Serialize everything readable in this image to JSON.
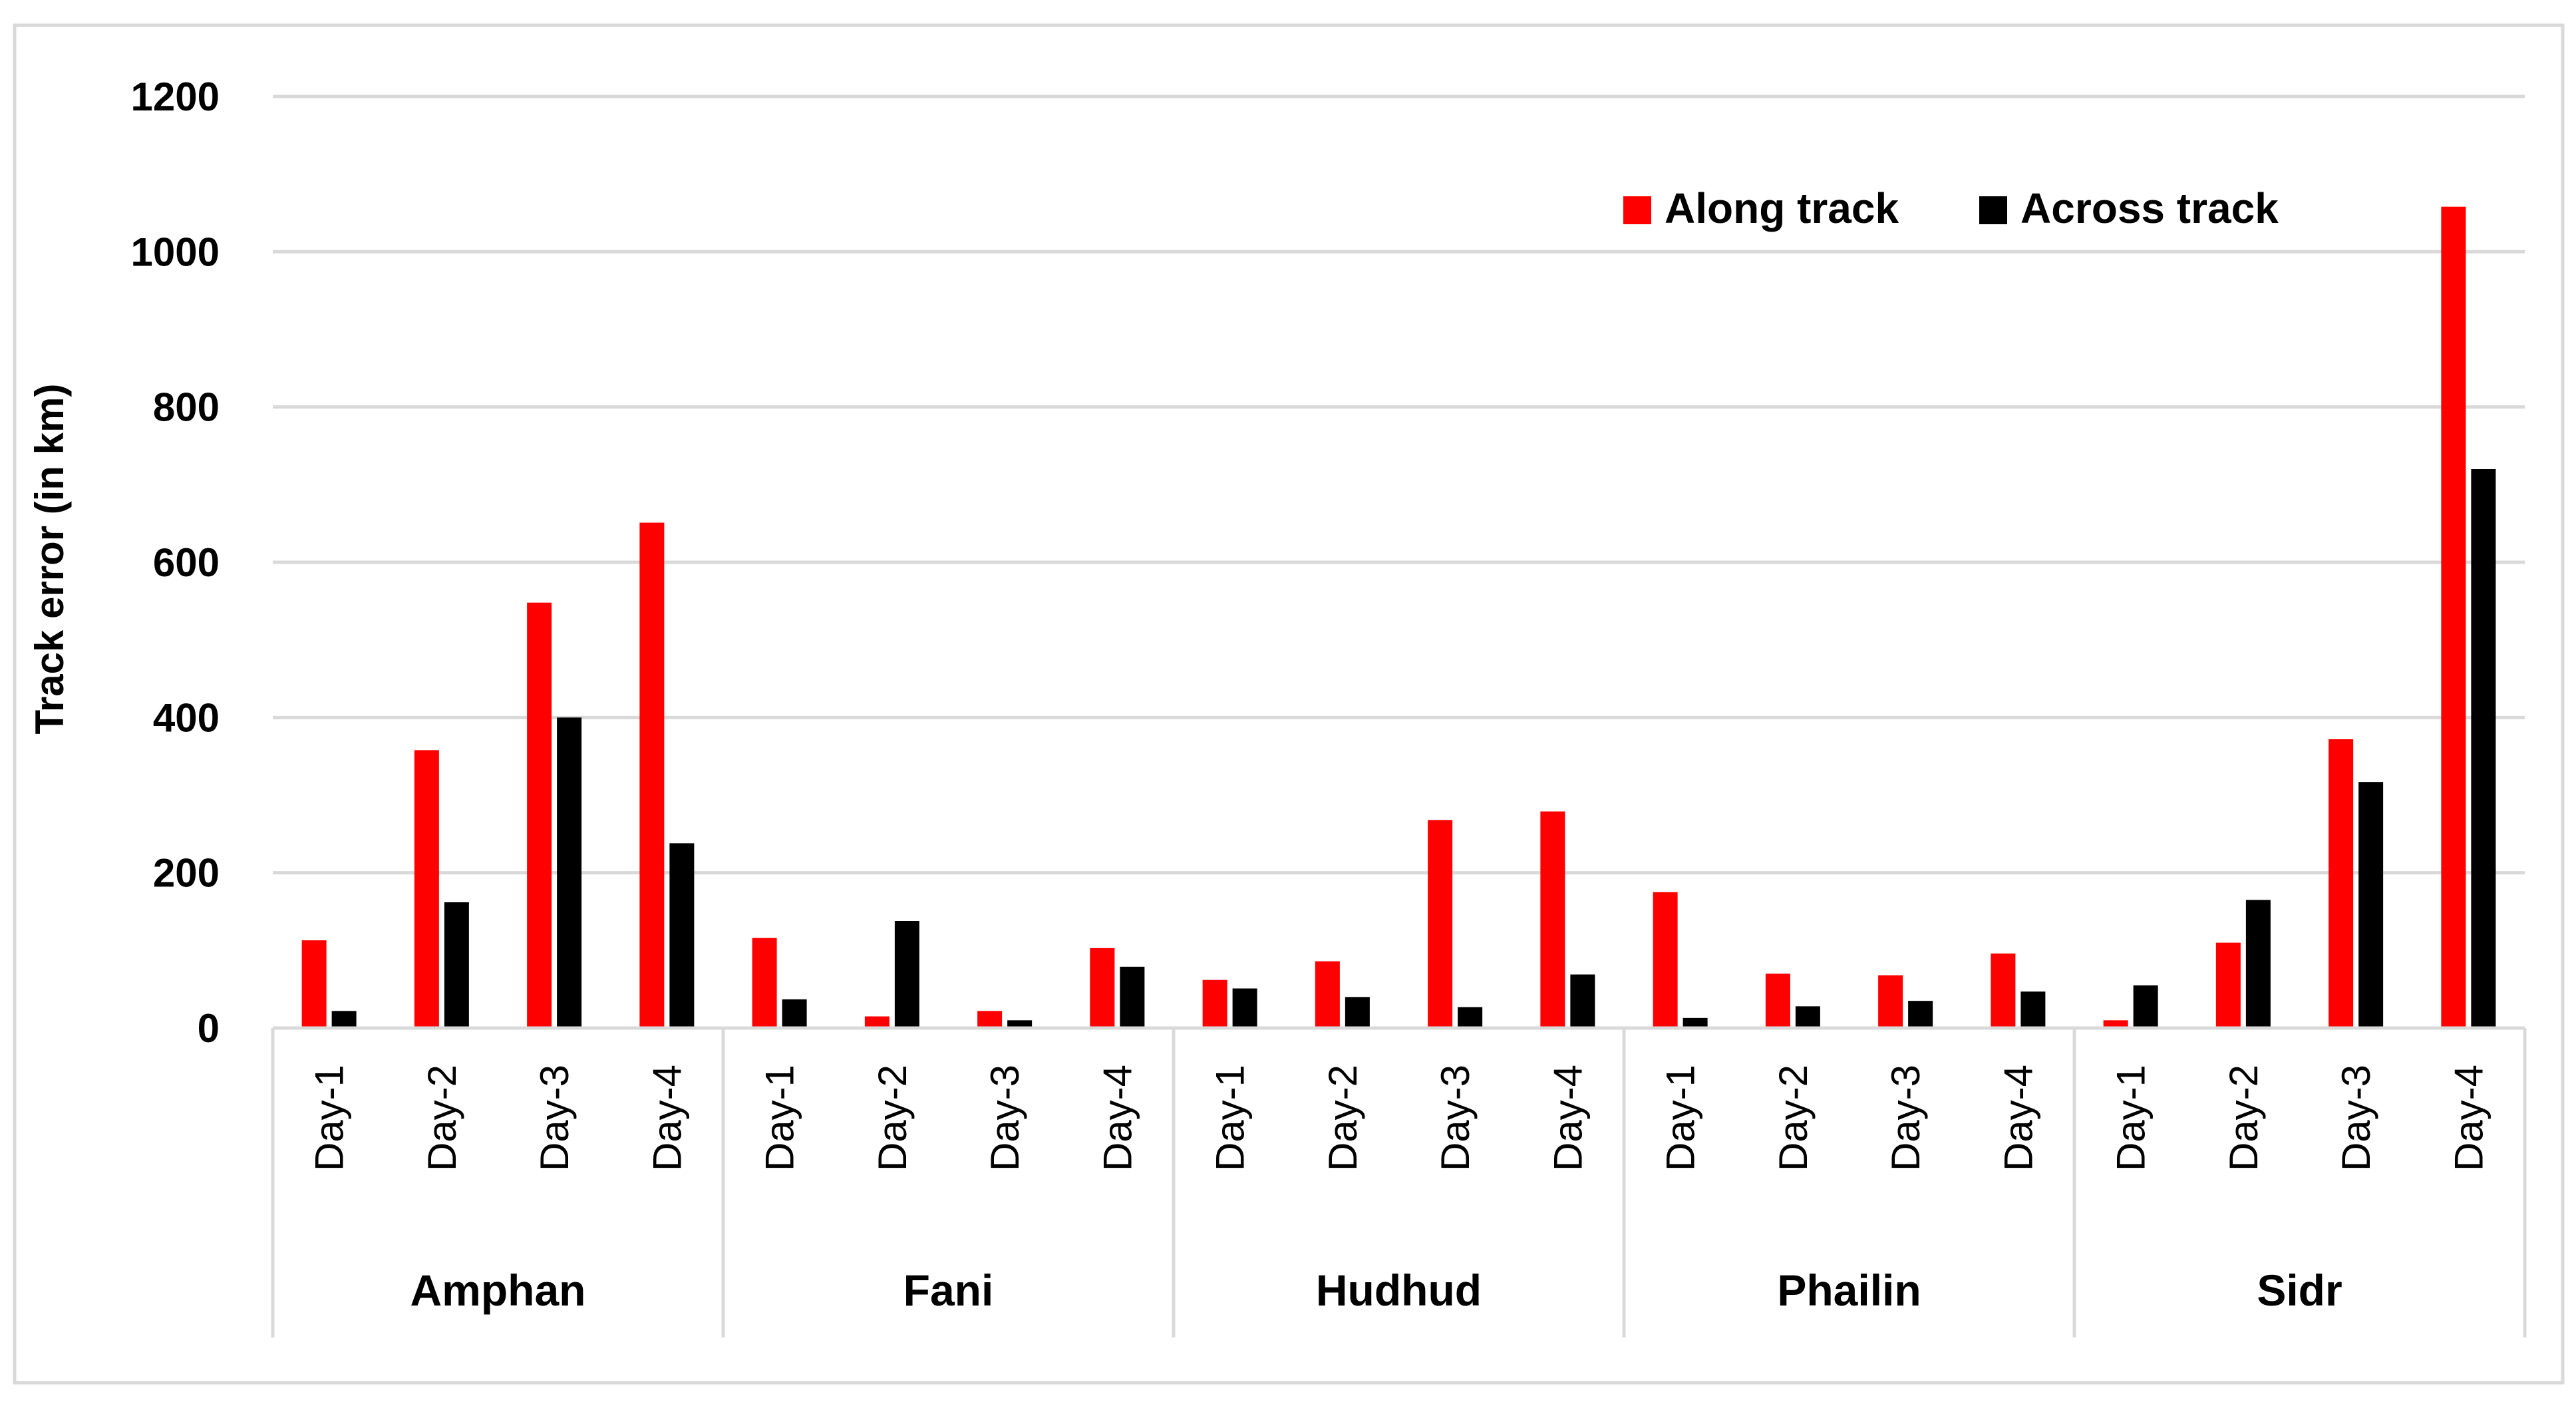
{
  "colors": {
    "along": "#ff0000",
    "across": "#000000",
    "grid": "#d9d9d9",
    "axis": "#d9d9d9",
    "text": "#000000",
    "frame": "#d9d9d9"
  },
  "chart_data": {
    "type": "bar",
    "ylabel": "Track error (in km)",
    "ylim": [
      0,
      1200
    ],
    "yticks": [
      0,
      200,
      400,
      600,
      800,
      1000,
      1200
    ],
    "grid": true,
    "legend_position": "top-right",
    "groups": [
      {
        "name": "Amphan",
        "categories": [
          "Day-1",
          "Day-2",
          "Day-3",
          "Day-4"
        ]
      },
      {
        "name": "Fani",
        "categories": [
          "Day-1",
          "Day-2",
          "Day-3",
          "Day-4"
        ]
      },
      {
        "name": "Hudhud",
        "categories": [
          "Day-1",
          "Day-2",
          "Day-3",
          "Day-4"
        ]
      },
      {
        "name": "Phailin",
        "categories": [
          "Day-1",
          "Day-2",
          "Day-3",
          "Day-4"
        ]
      },
      {
        "name": "Sidr",
        "categories": [
          "Day-1",
          "Day-2",
          "Day-3",
          "Day-4"
        ]
      }
    ],
    "series": [
      {
        "name": "Along track",
        "color": "#ff0000",
        "values": [
          113,
          358,
          548,
          651,
          116,
          15,
          22,
          103,
          62,
          86,
          268,
          279,
          175,
          70,
          68,
          96,
          10,
          110,
          372,
          1058
        ]
      },
      {
        "name": "Across track",
        "color": "#000000",
        "values": [
          22,
          162,
          400,
          238,
          37,
          138,
          10,
          79,
          51,
          40,
          27,
          69,
          13,
          28,
          35,
          47,
          55,
          165,
          317,
          720
        ]
      }
    ]
  }
}
